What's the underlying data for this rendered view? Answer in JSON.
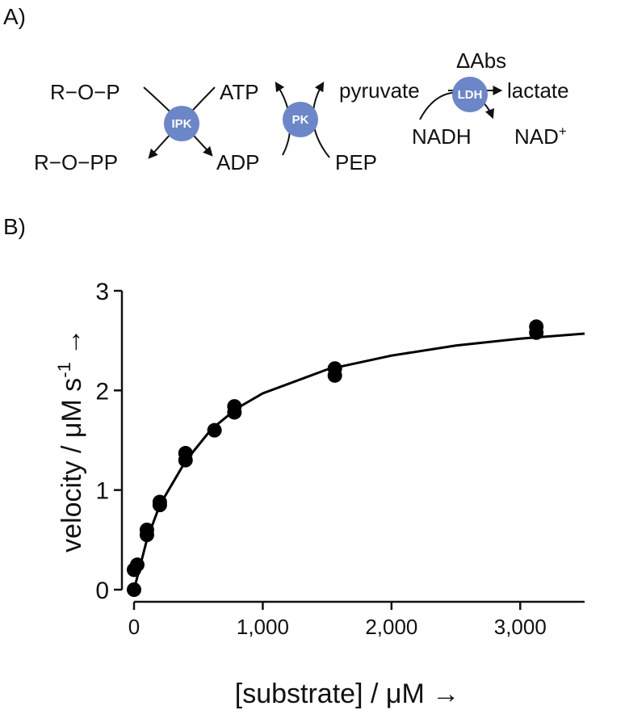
{
  "panel_a": {
    "label": "A)",
    "enzymes": {
      "ipk": "IPK",
      "pk": "PK",
      "ldh": "LDH"
    },
    "species": {
      "rop": "R−O−P",
      "ropp": "R−O−PP",
      "atp": "ATP",
      "adp": "ADP",
      "pyruvate": "pyruvate",
      "pep": "PEP",
      "dabs": "ΔAbs",
      "lactate": "lactate",
      "nadh": "NADH",
      "nad": "NAD",
      "nad_sup": "+"
    }
  },
  "panel_b": {
    "label": "B)"
  },
  "chart_data": {
    "type": "scatter",
    "xlabel": "[substrate] / μM →",
    "ylabel": "velocity / μM s",
    "ylabel_sup": "-1",
    "ylabel_end": "→",
    "xlim": [
      0,
      3500
    ],
    "ylim": [
      0,
      3
    ],
    "xticks": [
      0,
      {
        "value": 1000,
        "label": "1,000"
      },
      {
        "value": 2000,
        "label": "2,000"
      },
      {
        "value": 3000,
        "label": "3,000"
      }
    ],
    "yticks": [
      0,
      1,
      2,
      3
    ],
    "grid": false,
    "series": [
      {
        "type": "scatter",
        "color": "#000000",
        "x": [
          0,
          0,
          25,
          100,
          100,
          200,
          200,
          400,
          400,
          625,
          780,
          780,
          1560,
          1560,
          3125,
          3125
        ],
        "values": [
          0,
          0.2,
          0.25,
          0.55,
          0.6,
          0.85,
          0.88,
          1.3,
          1.37,
          1.6,
          1.78,
          1.84,
          2.15,
          2.22,
          2.58,
          2.64
        ]
      },
      {
        "type": "line",
        "color": "#000000",
        "x": [
          0,
          100,
          200,
          400,
          600,
          800,
          1000,
          1500,
          2000,
          2500,
          3000,
          3500
        ],
        "values": [
          0,
          0.5,
          0.85,
          1.29,
          1.61,
          1.82,
          1.97,
          2.21,
          2.35,
          2.45,
          2.52,
          2.57
        ]
      }
    ]
  }
}
